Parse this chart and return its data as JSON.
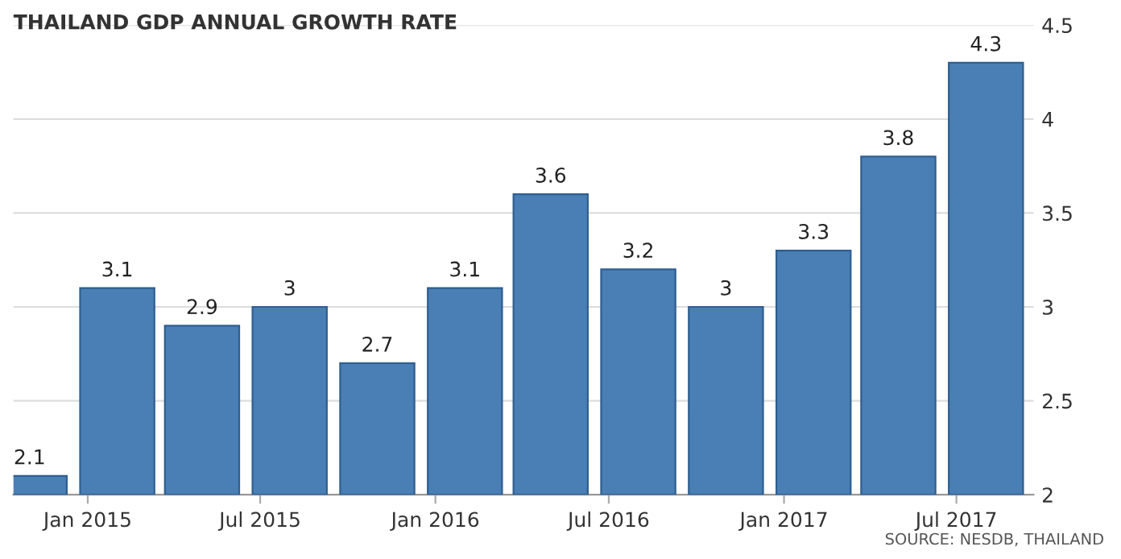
{
  "chart_data": {
    "type": "bar",
    "title": "THAILAND GDP ANNUAL GROWTH RATE",
    "x": [
      "2014-11-01",
      "2015-02-01",
      "2015-05-01",
      "2015-08-01",
      "2015-11-01",
      "2016-02-01",
      "2016-05-01",
      "2016-08-01",
      "2016-11-01",
      "2017-02-01",
      "2017-05-01",
      "2017-08-01"
    ],
    "values": [
      2.1,
      3.1,
      2.9,
      3,
      2.7,
      3.1,
      3.6,
      3.2,
      3,
      3.3,
      3.8,
      4.3
    ],
    "color": "#4a7fb5",
    "data_labels": true,
    "xlim": [
      "2014-10-15",
      "2017-09-20"
    ],
    "xticks": [
      {
        "value": "2015-01-01",
        "label": "Jan 2015"
      },
      {
        "value": "2015-07-01",
        "label": "Jul 2015"
      },
      {
        "value": "2016-01-01",
        "label": "Jan 2016"
      },
      {
        "value": "2016-07-01",
        "label": "Jul 2016"
      },
      {
        "value": "2017-01-01",
        "label": "Jan 2017"
      },
      {
        "value": "2017-07-01",
        "label": "Jul 2017"
      }
    ],
    "ylim": [
      2,
      4.5
    ],
    "yticks": [
      2,
      2.5,
      3,
      3.5,
      4,
      4.5
    ],
    "grid": "y",
    "annotations": [
      "SOURCE: NESDB, THAILAND"
    ]
  }
}
